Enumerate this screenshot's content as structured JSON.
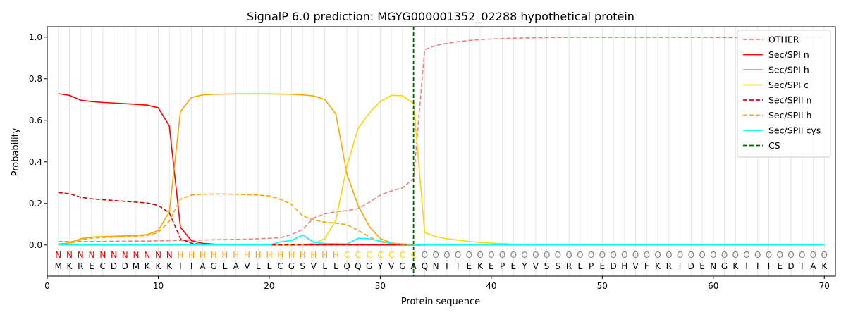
{
  "chart_data": {
    "type": "line",
    "title": "SignalP 6.0 prediction: MGYG000001352_02288 hypothetical protein",
    "xlabel": "Protein sequence",
    "ylabel": "Probability",
    "xlim": [
      0,
      71
    ],
    "ylim": [
      -0.15,
      1.05
    ],
    "x_ticks": [
      0,
      10,
      20,
      30,
      40,
      50,
      60,
      70
    ],
    "y_ticks": [
      0.0,
      0.2,
      0.4,
      0.6,
      0.8,
      1.0
    ],
    "y_tick_labels": [
      "0.0",
      "0.2",
      "0.4",
      "0.6",
      "0.8",
      "1.0"
    ],
    "grid": "vertical lines at each residue",
    "legend_position": "top-right",
    "sequence": [
      "M",
      "K",
      "R",
      "E",
      "C",
      "D",
      "D",
      "M",
      "K",
      "K",
      "K",
      "I",
      "I",
      "A",
      "G",
      "L",
      "A",
      "V",
      "L",
      "L",
      "C",
      "G",
      "S",
      "V",
      "L",
      "L",
      "Q",
      "Q",
      "G",
      "Y",
      "V",
      "G",
      "A",
      "Q",
      "N",
      "T",
      "T",
      "E",
      "K",
      "E",
      "P",
      "E",
      "Y",
      "V",
      "S",
      "S",
      "R",
      "L",
      "P",
      "E",
      "D",
      "H",
      "V",
      "F",
      "K",
      "R",
      "I",
      "D",
      "E",
      "N",
      "G",
      "K",
      "I",
      "I",
      "I",
      "E",
      "D",
      "T",
      "A",
      "K"
    ],
    "region_labels": [
      "N",
      "N",
      "N",
      "N",
      "N",
      "N",
      "N",
      "N",
      "N",
      "N",
      "N",
      "H",
      "H",
      "H",
      "H",
      "H",
      "H",
      "H",
      "H",
      "H",
      "H",
      "H",
      "H",
      "H",
      "H",
      "H",
      "C",
      "C",
      "C",
      "C",
      "C",
      "C",
      "C",
      "O",
      "O",
      "O",
      "O",
      "O",
      "O",
      "O",
      "O",
      "O",
      "O",
      "O",
      "O",
      "O",
      "O",
      "O",
      "O",
      "O",
      "O",
      "O",
      "O",
      "O",
      "O",
      "O",
      "O",
      "O",
      "O",
      "O",
      "O",
      "O",
      "O",
      "O",
      "O",
      "O",
      "O",
      "O",
      "O",
      "O"
    ],
    "region_colors": {
      "N": "#ff0000",
      "H": "#ffa500",
      "C": "#ffd700",
      "O": "#808080"
    },
    "cleavage_site": 33,
    "series": [
      {
        "name": "OTHER",
        "color": "#f08080",
        "dash": true,
        "values": [
          0.017,
          0.017,
          0.017,
          0.017,
          0.017,
          0.018,
          0.018,
          0.019,
          0.019,
          0.02,
          0.021,
          0.022,
          0.023,
          0.024,
          0.025,
          0.026,
          0.027,
          0.028,
          0.03,
          0.032,
          0.035,
          0.05,
          0.075,
          0.13,
          0.15,
          0.16,
          0.165,
          0.175,
          0.205,
          0.24,
          0.26,
          0.275,
          0.32,
          0.94,
          0.96,
          0.97,
          0.978,
          0.984,
          0.988,
          0.991,
          0.993,
          0.995,
          0.996,
          0.997,
          0.998,
          0.998,
          0.999,
          0.999,
          0.999,
          0.999,
          0.999,
          0.999,
          0.999,
          0.999,
          0.999,
          0.999,
          0.999,
          0.999,
          0.999,
          0.998,
          0.998,
          0.998,
          0.998,
          0.998,
          0.998,
          0.998,
          0.998,
          0.998,
          0.998,
          0.998
        ]
      },
      {
        "name": "Sec/SPI n",
        "color": "#ff0000",
        "dash": false,
        "values": [
          0.728,
          0.72,
          0.697,
          0.69,
          0.686,
          0.683,
          0.68,
          0.677,
          0.673,
          0.66,
          0.572,
          0.085,
          0.02,
          0.008,
          0.004,
          0.002,
          0.001,
          0.001,
          0.001,
          0.001,
          0.001,
          0.001,
          0.001,
          0.001,
          0.001,
          0.001,
          0.001,
          0.001,
          0,
          0,
          0,
          0,
          0,
          0,
          0,
          0,
          0,
          0,
          0,
          0,
          0,
          0,
          0,
          0,
          0,
          0,
          0,
          0,
          0,
          0,
          0,
          0,
          0,
          0,
          0,
          0,
          0,
          0,
          0,
          0,
          0,
          0,
          0,
          0,
          0,
          0,
          0,
          0,
          0,
          0
        ]
      },
      {
        "name": "Sec/SPI h",
        "color": "#ffa500",
        "dash": false,
        "values": [
          0.005,
          0.01,
          0.03,
          0.038,
          0.04,
          0.042,
          0.044,
          0.046,
          0.05,
          0.07,
          0.16,
          0.642,
          0.71,
          0.722,
          0.725,
          0.726,
          0.727,
          0.727,
          0.727,
          0.727,
          0.726,
          0.725,
          0.722,
          0.717,
          0.7,
          0.63,
          0.34,
          0.19,
          0.09,
          0.03,
          0.01,
          0.003,
          0.001,
          0.001,
          0,
          0,
          0,
          0,
          0,
          0,
          0,
          0,
          0,
          0,
          0,
          0,
          0,
          0,
          0,
          0,
          0,
          0,
          0,
          0,
          0,
          0,
          0,
          0,
          0,
          0,
          0,
          0,
          0,
          0,
          0,
          0,
          0,
          0,
          0,
          0
        ]
      },
      {
        "name": "Sec/SPI c",
        "color": "#ffd700",
        "dash": false,
        "values": [
          0,
          0,
          0,
          0,
          0,
          0,
          0,
          0,
          0,
          0,
          0,
          0,
          0,
          0,
          0,
          0,
          0,
          0,
          0,
          0,
          0,
          0,
          0.002,
          0.008,
          0.03,
          0.12,
          0.38,
          0.56,
          0.635,
          0.69,
          0.72,
          0.718,
          0.68,
          0.06,
          0.04,
          0.03,
          0.023,
          0.017,
          0.012,
          0.009,
          0.006,
          0.004,
          0.003,
          0.002,
          0.001,
          0.001,
          0.001,
          0,
          0,
          0,
          0,
          0,
          0,
          0,
          0,
          0,
          0,
          0,
          0,
          0,
          0,
          0,
          0,
          0,
          0,
          0,
          0,
          0,
          0,
          0
        ]
      },
      {
        "name": "Sec/SPII n",
        "color": "#dd0000",
        "dash": true,
        "values": [
          0.252,
          0.247,
          0.23,
          0.222,
          0.218,
          0.214,
          0.21,
          0.206,
          0.202,
          0.19,
          0.155,
          0.03,
          0.008,
          0.003,
          0.002,
          0.001,
          0.001,
          0.001,
          0.001,
          0,
          0,
          0,
          0,
          0,
          0,
          0,
          0,
          0,
          0,
          0,
          0,
          0,
          0,
          0,
          0,
          0,
          0,
          0,
          0,
          0,
          0,
          0,
          0,
          0,
          0,
          0,
          0,
          0,
          0,
          0,
          0,
          0,
          0,
          0,
          0,
          0,
          0,
          0,
          0,
          0,
          0,
          0,
          0,
          0,
          0,
          0,
          0,
          0,
          0,
          0
        ]
      },
      {
        "name": "Sec/SPII h",
        "color": "#ffa500",
        "dash": true,
        "values": [
          0.002,
          0.005,
          0.025,
          0.033,
          0.036,
          0.038,
          0.04,
          0.042,
          0.046,
          0.06,
          0.115,
          0.22,
          0.24,
          0.244,
          0.245,
          0.245,
          0.244,
          0.242,
          0.24,
          0.236,
          0.22,
          0.195,
          0.14,
          0.12,
          0.11,
          0.105,
          0.098,
          0.07,
          0.04,
          0.015,
          0.006,
          0.003,
          0.001,
          0.001,
          0,
          0,
          0,
          0,
          0,
          0,
          0,
          0,
          0,
          0,
          0,
          0,
          0,
          0,
          0,
          0,
          0,
          0,
          0,
          0,
          0,
          0,
          0,
          0,
          0,
          0,
          0,
          0,
          0,
          0,
          0,
          0,
          0,
          0,
          0,
          0
        ]
      },
      {
        "name": "Sec/SPII cys",
        "color": "#00ffff",
        "dash": false,
        "values": [
          0,
          0,
          0,
          0,
          0,
          0,
          0,
          0,
          0,
          0,
          0,
          0,
          0,
          0,
          0,
          0,
          0,
          0,
          0,
          0,
          0.015,
          0.022,
          0.048,
          0.012,
          0.007,
          0.006,
          0.005,
          0.032,
          0.03,
          0.018,
          0.008,
          0.005,
          0.003,
          0.001,
          0,
          0,
          0,
          0,
          0,
          0,
          0,
          0,
          0,
          0,
          0,
          0,
          0,
          0,
          0,
          0,
          0,
          0,
          0,
          0,
          0,
          0,
          0,
          0,
          0,
          0,
          0,
          0,
          0,
          0,
          0,
          0,
          0,
          0,
          0,
          0
        ]
      },
      {
        "name": "CS",
        "color": "#006400",
        "dash": true,
        "vertical_at": 33
      }
    ]
  }
}
